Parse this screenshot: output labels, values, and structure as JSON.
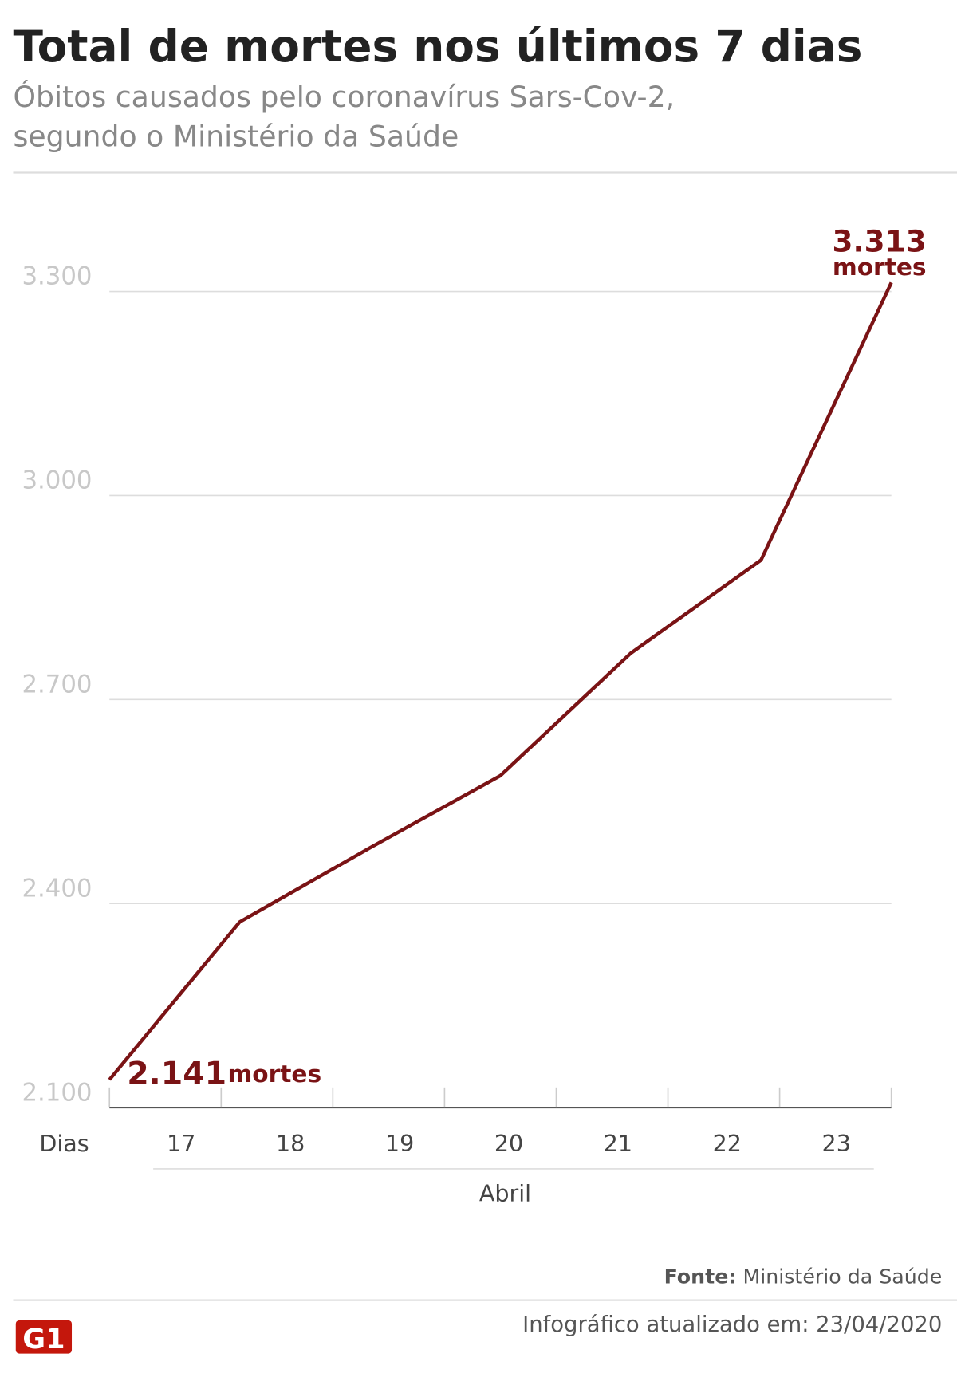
{
  "chart_data": {
    "type": "line",
    "title": "Total de mortes nos últimos 7 dias",
    "subtitle": [
      "Óbitos causados pelo coronavírus Sars-Cov-2,",
      "segundo o Ministério da Saúde"
    ],
    "x_label": "Dias",
    "x_group_label": "Abril",
    "categories": [
      "17",
      "18",
      "19",
      "20",
      "21",
      "22",
      "23"
    ],
    "series": [
      {
        "name": "mortes",
        "color": "#7a1315",
        "values": [
          2141,
          2373,
          2482,
          2588,
          2768,
          2905,
          3313
        ],
        "value_labels": [
          "2.141",
          null,
          null,
          null,
          null,
          null,
          "3.313"
        ]
      }
    ],
    "ylim": [
      2100,
      3400
    ],
    "yticks": [
      {
        "value": 2100,
        "label": "2.100"
      },
      {
        "value": 2400,
        "label": "2.400"
      },
      {
        "value": 2700,
        "label": "2.700"
      },
      {
        "value": 3000,
        "label": "3.000"
      },
      {
        "value": 3300,
        "label": "3.300"
      }
    ],
    "grid": true,
    "source_label": "Fonte:",
    "source": "Ministério da Saúde",
    "footer": "Infográfico atualizado em: 23/04/2020"
  }
}
